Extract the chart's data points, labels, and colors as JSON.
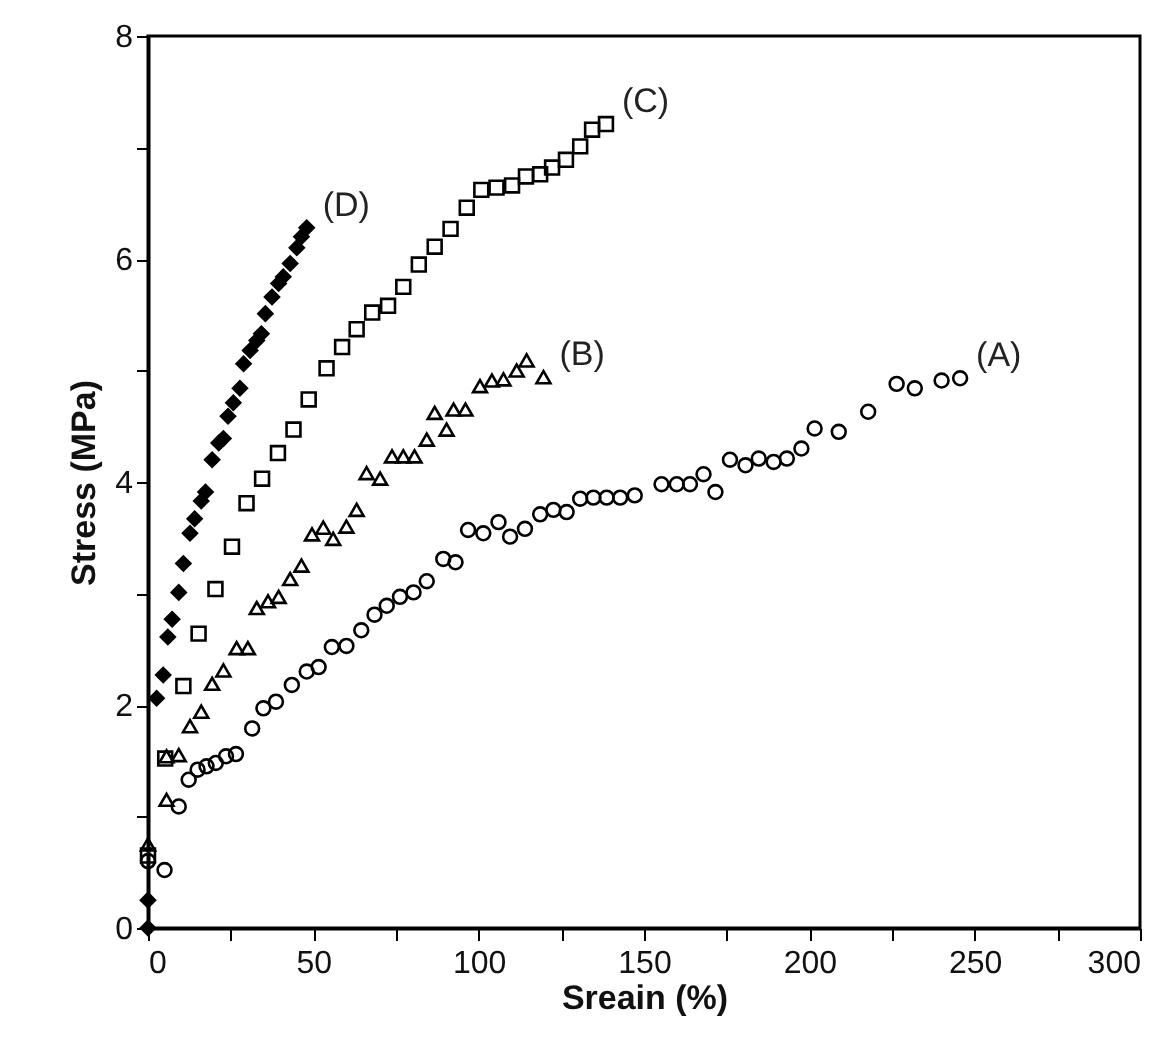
{
  "chart_data": {
    "type": "scatter",
    "xlabel": "Sreain (%)",
    "ylabel": "Stress (MPa)",
    "xlim": [
      0,
      300
    ],
    "xticks": [
      0,
      {
        "value": 25,
        "label": null
      },
      50,
      {
        "value": 75,
        "label": null
      },
      100,
      {
        "value": 125,
        "label": null
      },
      150,
      {
        "value": 175,
        "label": null
      },
      200,
      {
        "value": 225,
        "label": null
      },
      250,
      {
        "value": 275,
        "label": null
      },
      300
    ],
    "ylim": [
      0,
      8
    ],
    "yticks": [
      0,
      {
        "value": 1,
        "label": null
      },
      2,
      {
        "value": 3,
        "label": null
      },
      4,
      {
        "value": 5,
        "label": null
      },
      6,
      {
        "value": 7,
        "label": null
      },
      8
    ],
    "grid": false,
    "series": [
      {
        "name": "(A)",
        "color": "#000000",
        "marker": "circle",
        "x": [
          0,
          5,
          9.3,
          12.3,
          15,
          17.7,
          20.5,
          23.6,
          26.6,
          31.5,
          34.9,
          38.7,
          43.5,
          48,
          51.6,
          55.6,
          60,
          64.5,
          68.5,
          72.2,
          76.2,
          80.3,
          84.3,
          89.3,
          93,
          96.8,
          101.4,
          106,
          109.5,
          114,
          118.6,
          122.6,
          126.6,
          130.7,
          134.7,
          138.7,
          142.8,
          147.2,
          155.3,
          159.9,
          163.9,
          168,
          171.6,
          176,
          180.7,
          184.7,
          189.2,
          193.2,
          197.6,
          201.6,
          208.9,
          217.8,
          226.4,
          231.9,
          240,
          245.6
        ],
        "values": [
          0.6,
          0.52,
          1.09,
          1.33,
          1.42,
          1.45,
          1.48,
          1.54,
          1.56,
          1.79,
          1.97,
          2.03,
          2.18,
          2.3,
          2.34,
          2.52,
          2.53,
          2.67,
          2.81,
          2.89,
          2.97,
          3.01,
          3.11,
          3.31,
          3.28,
          3.57,
          3.54,
          3.64,
          3.51,
          3.58,
          3.71,
          3.75,
          3.73,
          3.85,
          3.86,
          3.86,
          3.86,
          3.88,
          3.98,
          3.98,
          3.98,
          4.07,
          3.91,
          4.2,
          4.15,
          4.21,
          4.18,
          4.21,
          4.3,
          4.48,
          4.45,
          4.63,
          4.88,
          4.84,
          4.91,
          4.93
        ]
      },
      {
        "name": "(B)",
        "color": "#000000",
        "marker": "triangle",
        "x": [
          0,
          5.6,
          5.6,
          9.3,
          12.7,
          16.1,
          19.4,
          22.8,
          26.8,
          30.2,
          32.9,
          36.3,
          39.5,
          43,
          46.4,
          49.6,
          53,
          56,
          60,
          63.1,
          66.1,
          70.2,
          73.8,
          77.2,
          80.6,
          84.3,
          86.7,
          90.3,
          92.4,
          96,
          100.4,
          104,
          107.5,
          111.5,
          114.5,
          119.6
        ],
        "values": [
          0.75,
          1.15,
          1.54,
          1.55,
          1.81,
          1.94,
          2.19,
          2.31,
          2.51,
          2.51,
          2.87,
          2.93,
          2.97,
          3.13,
          3.25,
          3.53,
          3.59,
          3.49,
          3.6,
          3.75,
          4.08,
          4.03,
          4.23,
          4.23,
          4.23,
          4.38,
          4.62,
          4.47,
          4.65,
          4.65,
          4.86,
          4.91,
          4.92,
          5.0,
          5.09,
          4.94
        ]
      },
      {
        "name": "(C)",
        "color": "#000000",
        "marker": "square",
        "x": [
          0,
          5.2,
          10.7,
          15.3,
          20.4,
          25.4,
          29.8,
          34.5,
          39.3,
          44,
          48.6,
          54,
          58.7,
          63.1,
          67.8,
          72.6,
          77.2,
          81.9,
          86.7,
          91.5,
          96.4,
          100.8,
          105.4,
          110.1,
          114.3,
          118.6,
          122.2,
          126.4,
          130.7,
          134.3,
          138.5
        ],
        "values": [
          0.65,
          1.52,
          2.17,
          2.64,
          3.04,
          3.42,
          3.81,
          4.03,
          4.26,
          4.47,
          4.74,
          5.02,
          5.21,
          5.37,
          5.52,
          5.58,
          5.75,
          5.95,
          6.11,
          6.27,
          6.46,
          6.62,
          6.64,
          6.66,
          6.74,
          6.76,
          6.82,
          6.89,
          7.01,
          7.16,
          7.21
        ]
      },
      {
        "name": "(D)",
        "color": "#000000",
        "marker": "diamond",
        "x": [
          0,
          0,
          2.6,
          4.6,
          6,
          7.3,
          9.3,
          10.7,
          12.7,
          14.1,
          16.1,
          17.4,
          19.4,
          21.4,
          22.8,
          24.2,
          25.8,
          27.8,
          28.9,
          30.9,
          32.9,
          34.3,
          35.5,
          37.5,
          39.5,
          40.9,
          43,
          45,
          46.4,
          48
        ],
        "values": [
          0,
          0.25,
          2.06,
          2.27,
          2.61,
          2.77,
          3.01,
          3.27,
          3.54,
          3.67,
          3.83,
          3.91,
          4.2,
          4.35,
          4.39,
          4.59,
          4.71,
          4.84,
          5.06,
          5.18,
          5.27,
          5.33,
          5.51,
          5.66,
          5.78,
          5.84,
          5.96,
          6.1,
          6.2,
          6.28
        ]
      }
    ]
  }
}
